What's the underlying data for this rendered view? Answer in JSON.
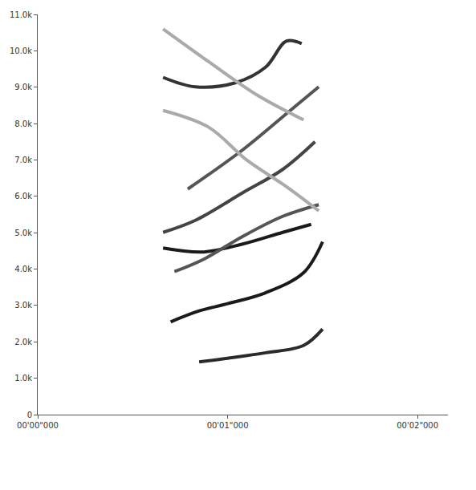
{
  "chart_data": {
    "type": "line",
    "xlim": [
      0,
      2.16
    ],
    "ylim": [
      0,
      11000
    ],
    "xticks": [
      {
        "value": 0,
        "label": "00'00\"000"
      },
      {
        "value": 1,
        "label": "00'01\"000"
      },
      {
        "value": 2,
        "label": "00'02\"000"
      }
    ],
    "yticks": [
      0,
      {
        "value": 1000,
        "label": "1.0k"
      },
      {
        "value": 2000,
        "label": "2.0k"
      },
      {
        "value": 3000,
        "label": "3.0k"
      },
      {
        "value": 4000,
        "label": "4.0k"
      },
      {
        "value": 5000,
        "label": "5.0k"
      },
      {
        "value": 6000,
        "label": "6.0k"
      },
      {
        "value": 7000,
        "label": "7.0k"
      },
      {
        "value": 8000,
        "label": "8.0k"
      },
      {
        "value": 9000,
        "label": "9.0k"
      },
      {
        "value": 10000,
        "label": "10.0k"
      },
      {
        "value": 11000,
        "label": "11.0k"
      }
    ],
    "grid": false,
    "series": [
      {
        "color": "#2b2b2b",
        "x": [
          0.85,
          1.0,
          1.2,
          1.4,
          1.5
        ],
        "values": [
          1450,
          1550,
          1700,
          1900,
          2350
        ]
      },
      {
        "color": "#1a1a1a",
        "x": [
          0.7,
          0.85,
          1.0,
          1.2,
          1.4,
          1.5
        ],
        "values": [
          2550,
          2850,
          3050,
          3350,
          3900,
          4750
        ]
      },
      {
        "color": "#1a1a1a",
        "x": [
          0.66,
          0.87,
          1.08,
          1.29,
          1.44
        ],
        "values": [
          4580,
          4470,
          4690,
          5010,
          5230
        ]
      },
      {
        "color": "#555555",
        "x": [
          0.72,
          0.87,
          1.08,
          1.29,
          1.48
        ],
        "values": [
          3930,
          4260,
          4900,
          5450,
          5770
        ]
      },
      {
        "color": "#444444",
        "x": [
          0.66,
          0.83,
          1.08,
          1.29,
          1.46
        ],
        "values": [
          5010,
          5340,
          6100,
          6740,
          7500
        ]
      },
      {
        "color": "#555555",
        "x": [
          0.79,
          1.08,
          1.33,
          1.48
        ],
        "values": [
          6200,
          7280,
          8360,
          9010
        ]
      },
      {
        "color": "#333333",
        "x": [
          0.66,
          0.83,
          1.04,
          1.2,
          1.31,
          1.39
        ],
        "values": [
          9270,
          9010,
          9120,
          9550,
          10270,
          10200
        ]
      },
      {
        "color": "#aaaaaa",
        "x": [
          0.66,
          0.9,
          1.1,
          1.3,
          1.48
        ],
        "values": [
          8360,
          7900,
          7000,
          6300,
          5600
        ]
      },
      {
        "color": "#aaaaaa",
        "x": [
          0.66,
          0.9,
          1.15,
          1.4
        ],
        "values": [
          10600,
          9700,
          8800,
          8100
        ]
      }
    ]
  }
}
